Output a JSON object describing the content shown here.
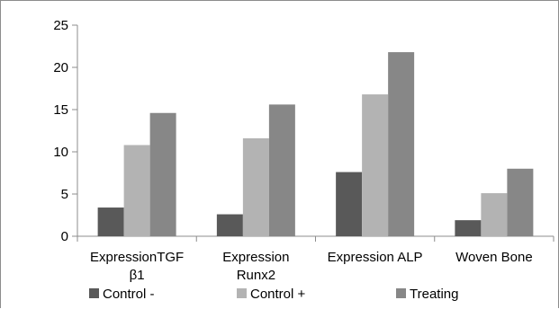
{
  "chart_data": {
    "type": "bar",
    "title": "",
    "xlabel": "",
    "ylabel": "",
    "ylim": [
      0,
      25
    ],
    "yticks": [
      "0",
      "5",
      "10",
      "15",
      "20",
      "25"
    ],
    "grid": false,
    "legend_position": "bottom",
    "categories": [
      [
        "ExpressionTGF",
        "β1"
      ],
      [
        "Expression",
        "Runx2"
      ],
      [
        "Expression ALP"
      ],
      [
        "Woven Bone"
      ]
    ],
    "series": [
      {
        "name": "Control -",
        "color": "#595959",
        "values": [
          3.4,
          2.6,
          7.6,
          1.9
        ]
      },
      {
        "name": "Control +",
        "color": "#b3b3b3",
        "values": [
          10.8,
          11.6,
          16.8,
          5.1
        ]
      },
      {
        "name": "Treating",
        "color": "#878787",
        "values": [
          14.6,
          15.6,
          21.8,
          8.0
        ]
      }
    ]
  }
}
